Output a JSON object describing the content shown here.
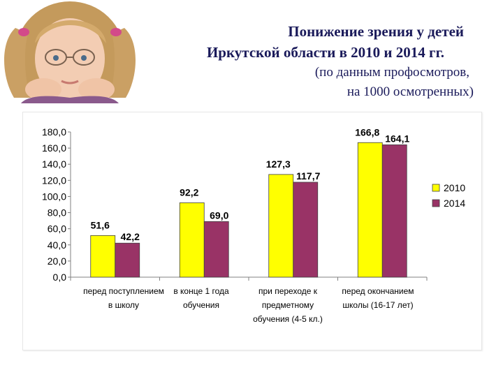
{
  "title": {
    "line1": "Понижение зрения у детей",
    "line2": "Иркутской области в 2010 и 2014 гг.",
    "subtitle_line1": "(по данным профосмотров,",
    "subtitle_line2": "на 1000 осмотренных)"
  },
  "colors": {
    "series_2010": "#ffff00",
    "series_2014": "#993366",
    "title": "#1a1a5a"
  },
  "chart_data": {
    "type": "bar",
    "categories": [
      "перед поступлением в школу",
      "в конце 1 года обучения",
      "при переходе к предметному обучения (4-5 кл.)",
      "перед окончанием школы (16-17 лет)"
    ],
    "series": [
      {
        "name": "2010",
        "values": [
          51.6,
          92.2,
          127.3,
          166.8
        ],
        "labels": [
          "51,6",
          "92,2",
          "127,3",
          "166,8"
        ]
      },
      {
        "name": "2014",
        "values": [
          42.2,
          69.0,
          117.7,
          164.1
        ],
        "labels": [
          "42,2",
          "69,0",
          "117,7",
          "164,1"
        ]
      }
    ],
    "y_ticks": [
      "0,0",
      "20,0",
      "40,0",
      "60,0",
      "80,0",
      "100,0",
      "120,0",
      "140,0",
      "160,0",
      "180,0"
    ],
    "ylim": [
      0,
      180
    ],
    "grid": false,
    "legend": "right"
  }
}
